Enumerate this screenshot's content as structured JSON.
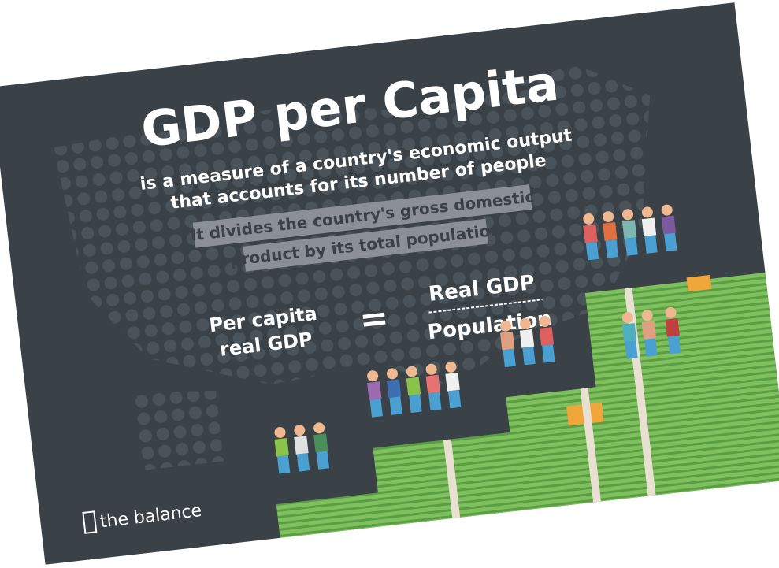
{
  "title": "GDP per Capita",
  "subtitle": [
    "is a measure of a country's economic output",
    "that accounts for its number of people"
  ],
  "highlight": [
    "It divides the country's gross domestic",
    "product by its total population"
  ],
  "formula": {
    "left": [
      "Per capita",
      "real GDP"
    ],
    "equals": "=",
    "numerator": "Real GDP",
    "denominator": "Population"
  },
  "brand": "the balance"
}
